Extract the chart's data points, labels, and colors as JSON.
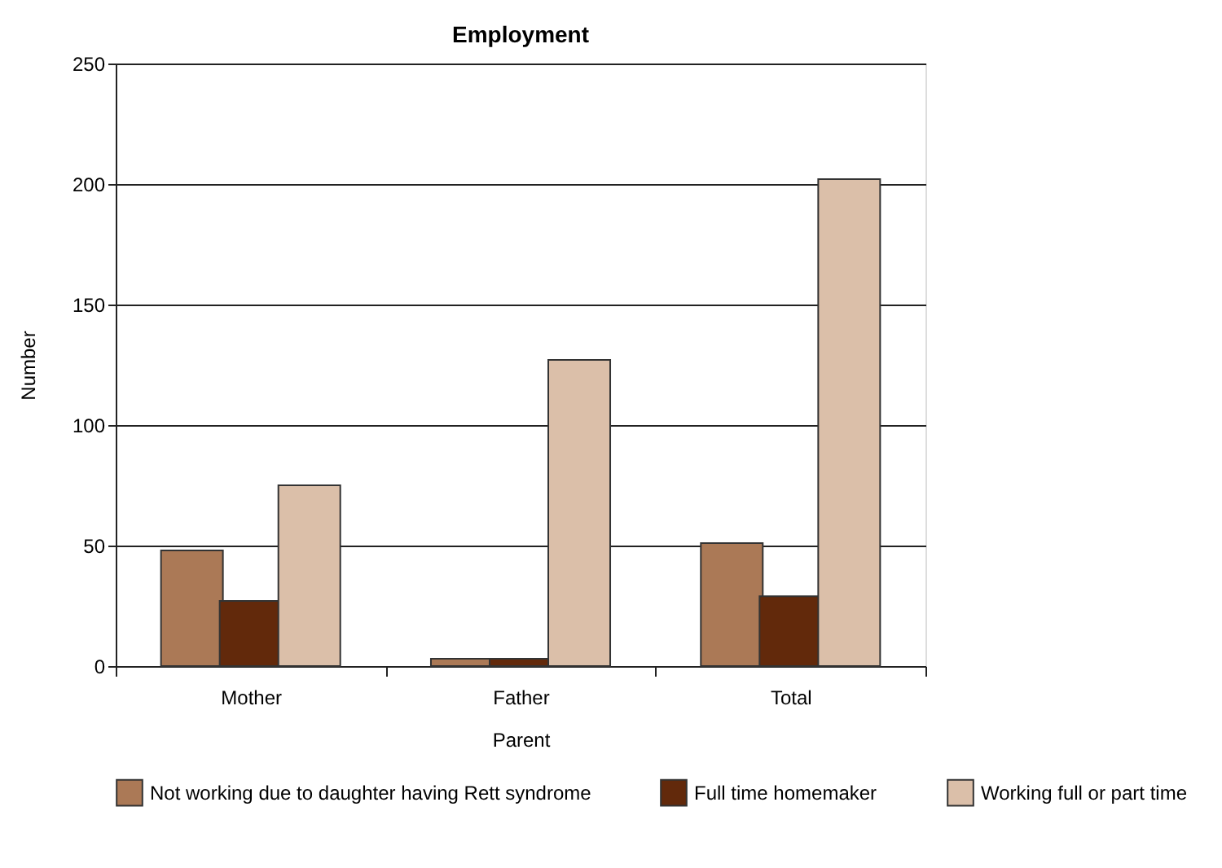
{
  "chart_data": {
    "type": "bar",
    "title": "Employment",
    "xlabel": "Parent",
    "ylabel": "Number",
    "categories": [
      "Mother",
      "Father",
      "Total"
    ],
    "series": [
      {
        "name": "Not working due to daughter having Rett syndrome",
        "color": "#ab7956",
        "values": [
          48,
          3,
          51
        ]
      },
      {
        "name": "Full time homemaker",
        "color": "#62290b",
        "values": [
          27,
          3,
          29
        ]
      },
      {
        "name": "Working full or part time",
        "color": "#dbbfa9",
        "values": [
          75,
          127,
          202
        ]
      }
    ],
    "ylim": [
      0,
      250
    ],
    "yticks": [
      0,
      50,
      100,
      150,
      200,
      250
    ],
    "grid": "y",
    "legend": "bottom"
  }
}
